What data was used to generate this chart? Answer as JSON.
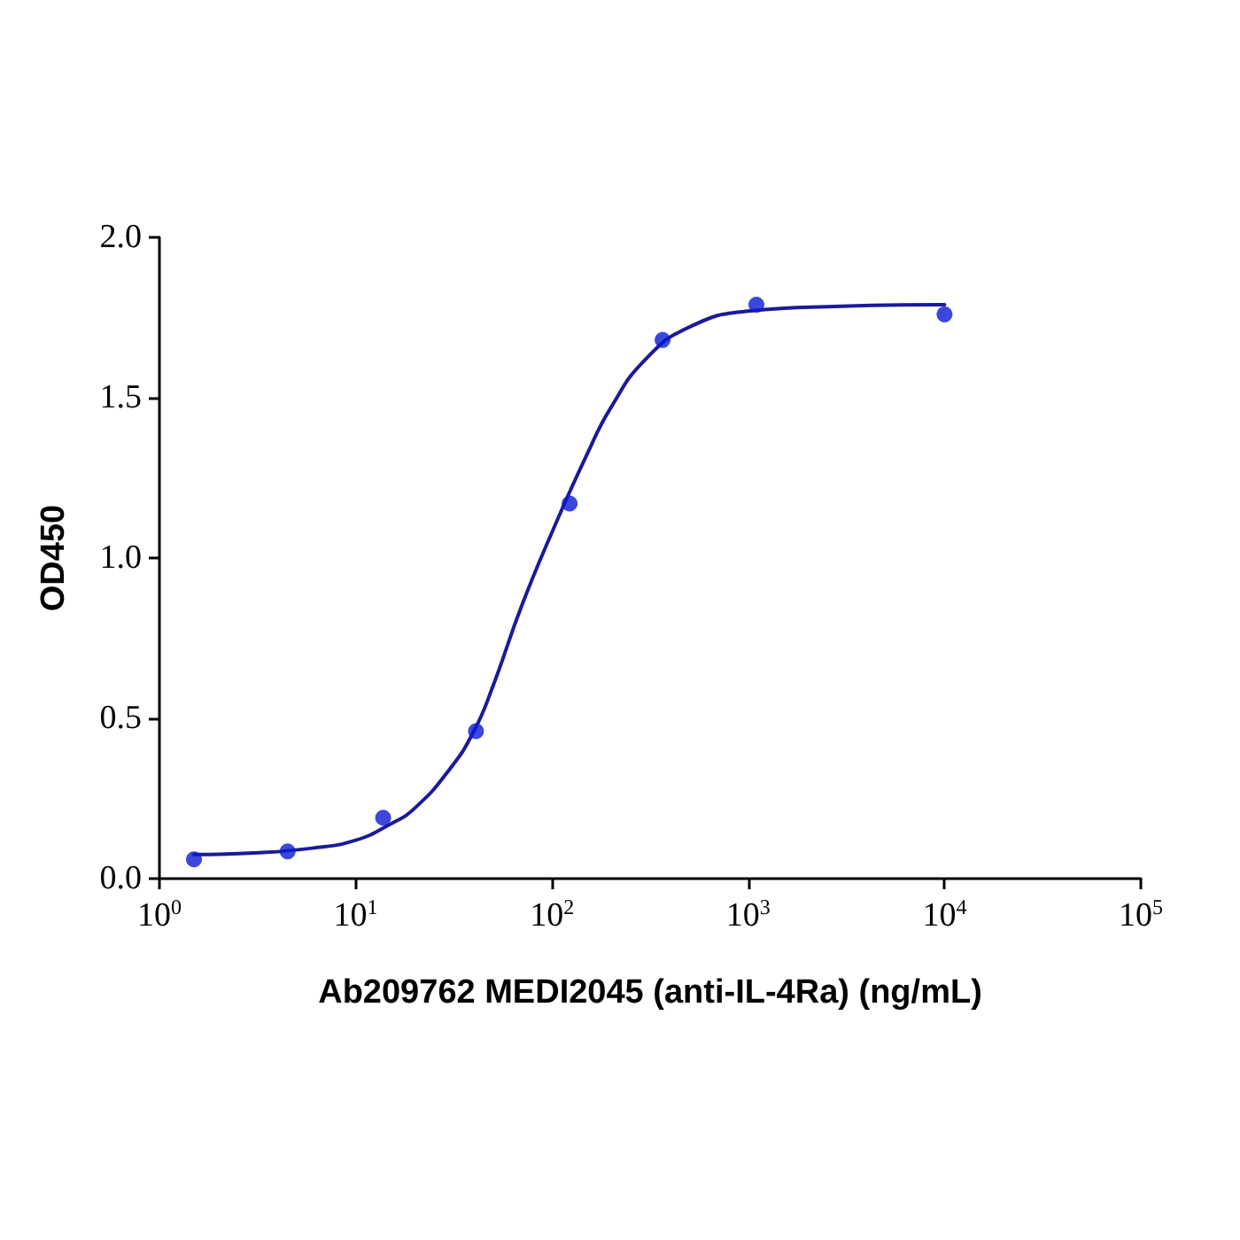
{
  "chart_data": {
    "type": "scatter",
    "xlabel": "Ab209762 MEDI2045 (anti-IL-4Ra) (ng/mL)",
    "ylabel": "OD450",
    "log": "x",
    "grid": false,
    "marker": "circle",
    "xlim": [
      1,
      100000
    ],
    "xticks": [
      {
        "value": 1,
        "label": "10$^{0}$"
      },
      {
        "value": 10,
        "label": "10$^{1}$"
      },
      {
        "value": 100,
        "label": "10$^{2}$"
      },
      {
        "value": 1000,
        "label": "10$^{3}$"
      },
      {
        "value": 10000,
        "label": "10$^{4}$"
      },
      {
        "value": 100000,
        "label": "10$^{5}$"
      }
    ],
    "ylim": [
      0,
      2
    ],
    "yticks": [
      {
        "value": 0,
        "label": "0.0"
      },
      {
        "value": 0.5,
        "label": "0.5"
      },
      {
        "value": 1,
        "label": "1.0"
      },
      {
        "value": 1.5,
        "label": "1.5"
      },
      {
        "value": 2,
        "label": "2.0"
      }
    ],
    "series": [
      {
        "color": "#0a1ad2",
        "x": [
          1.5,
          4.5,
          13.8,
          41,
          123,
          366,
          1100,
          10000
        ],
        "values": [
          0.06,
          0.085,
          0.19,
          0.46,
          1.17,
          1.68,
          1.79,
          1.76
        ]
      },
      {
        "type": "line",
        "color": "#1a1a9a",
        "marker": "none",
        "line_style": "solid",
        "x": [
          1.5,
          3,
          6,
          10,
          15,
          20,
          30,
          40,
          50,
          70,
          100,
          150,
          200,
          300,
          500,
          1000,
          3000,
          10000
        ],
        "values": [
          0.075,
          0.08,
          0.095,
          0.12,
          0.17,
          0.22,
          0.34,
          0.46,
          0.6,
          0.85,
          1.08,
          1.32,
          1.47,
          1.62,
          1.72,
          1.77,
          1.785,
          1.79
        ]
      }
    ]
  }
}
